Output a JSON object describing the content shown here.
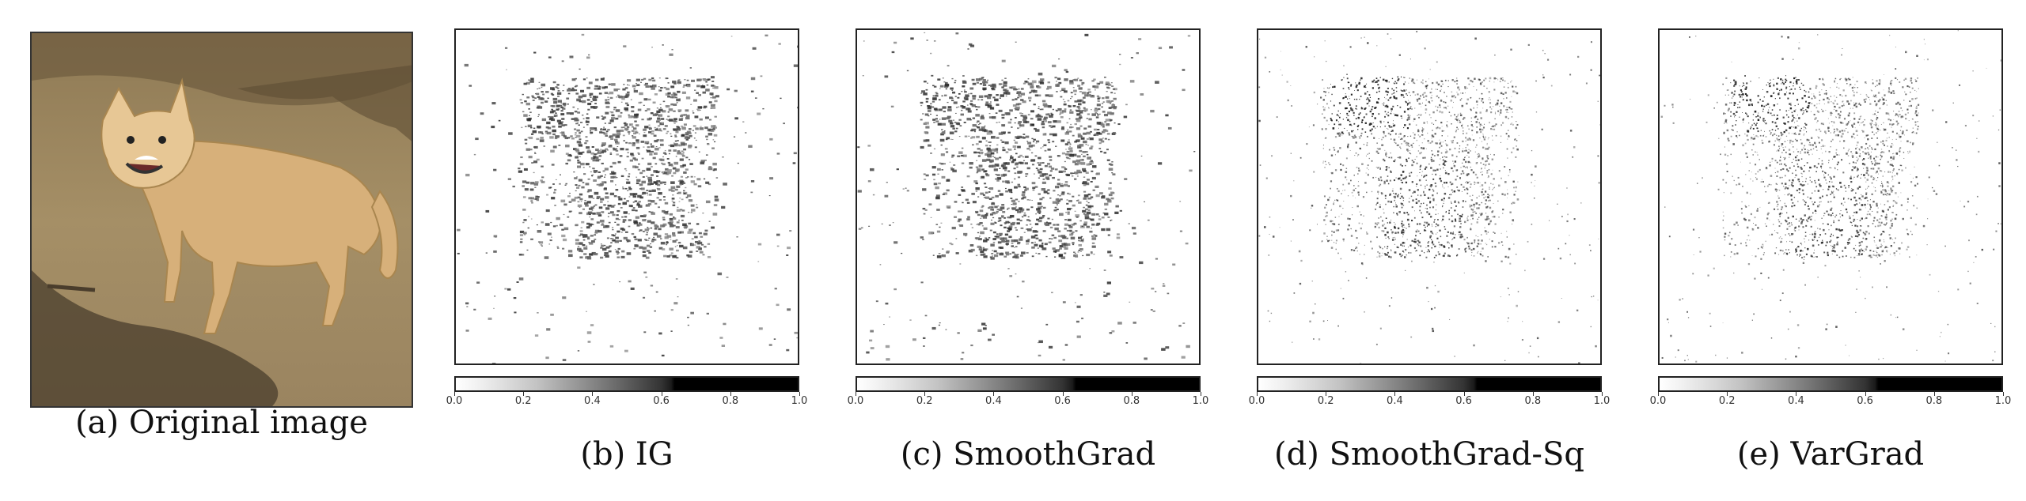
{
  "panels": [
    {
      "id": "a",
      "caption": "(a) Original image"
    },
    {
      "id": "b",
      "caption": "(b) IG"
    },
    {
      "id": "c",
      "caption": "(c) SmoothGrad"
    },
    {
      "id": "d",
      "caption": "(d) SmoothGrad-Sq"
    },
    {
      "id": "e",
      "caption": "(e) VarGrad"
    }
  ],
  "colorbar": {
    "ticks": [
      "0.0",
      "0.2",
      "0.4",
      "0.6",
      "0.8",
      "1.0"
    ],
    "range": [
      0.0,
      1.0
    ],
    "colormap": "grayscale-white-to-black"
  }
}
